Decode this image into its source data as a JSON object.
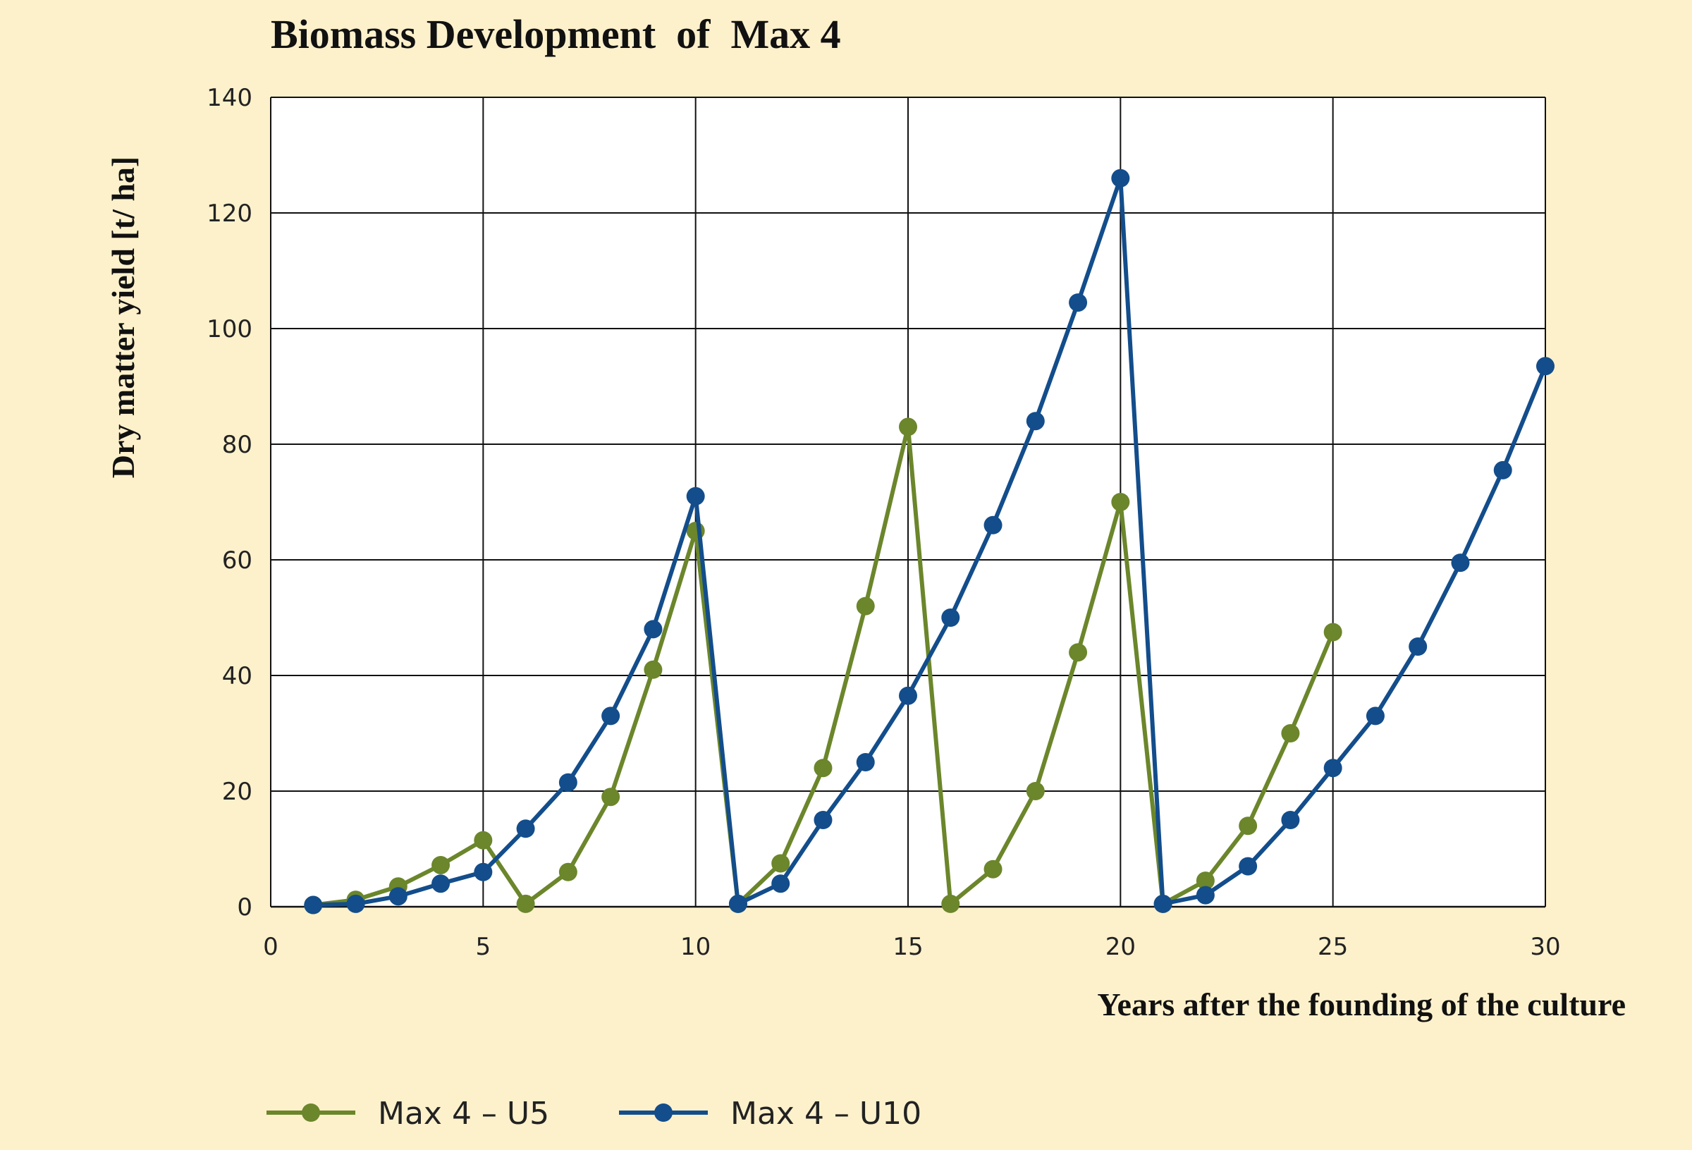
{
  "chart_data": {
    "type": "line",
    "title": "Biomass Development  of  Max 4",
    "xlabel": "Years after the founding of the culture",
    "ylabel": "Dry matter yield [t/ ha]",
    "xlim": [
      0,
      30
    ],
    "ylim": [
      0,
      140
    ],
    "xticks": [
      0,
      5,
      10,
      15,
      20,
      25,
      30
    ],
    "yticks": [
      0,
      20,
      40,
      60,
      80,
      100,
      120,
      140
    ],
    "grid": true,
    "legend_position": "bottom-left",
    "background": "#fdf1cc",
    "plot_background": "#ffffff",
    "series": [
      {
        "name": "Max 4 – U5",
        "color": "#6b862b",
        "x": [
          1,
          2,
          3,
          4,
          5,
          6,
          7,
          8,
          9,
          10,
          11,
          12,
          13,
          14,
          15,
          16,
          17,
          18,
          19,
          20,
          21,
          22,
          23,
          24,
          25
        ],
        "y": [
          0.3,
          1.2,
          3.5,
          7.2,
          11.5,
          0.5,
          6,
          19,
          41,
          65,
          0.5,
          7.5,
          24,
          52,
          83,
          0.5,
          6.5,
          20,
          44,
          70,
          0.5,
          4.5,
          14,
          30,
          47.5
        ]
      },
      {
        "name": "Max 4 – U10",
        "color": "#134d8b",
        "x": [
          1,
          2,
          3,
          4,
          5,
          6,
          7,
          8,
          9,
          10,
          11,
          12,
          13,
          14,
          15,
          16,
          17,
          18,
          19,
          20,
          21,
          22,
          23,
          24,
          25,
          26,
          27,
          28,
          29,
          30
        ],
        "y": [
          0.3,
          0.5,
          1.8,
          4,
          6,
          13.5,
          21.5,
          33,
          48,
          71,
          0.5,
          4,
          15,
          25,
          36.5,
          50,
          66,
          84,
          104.5,
          126,
          0.5,
          2,
          7,
          15,
          24,
          33,
          45,
          59.5,
          75.5,
          93.5
        ]
      }
    ]
  }
}
